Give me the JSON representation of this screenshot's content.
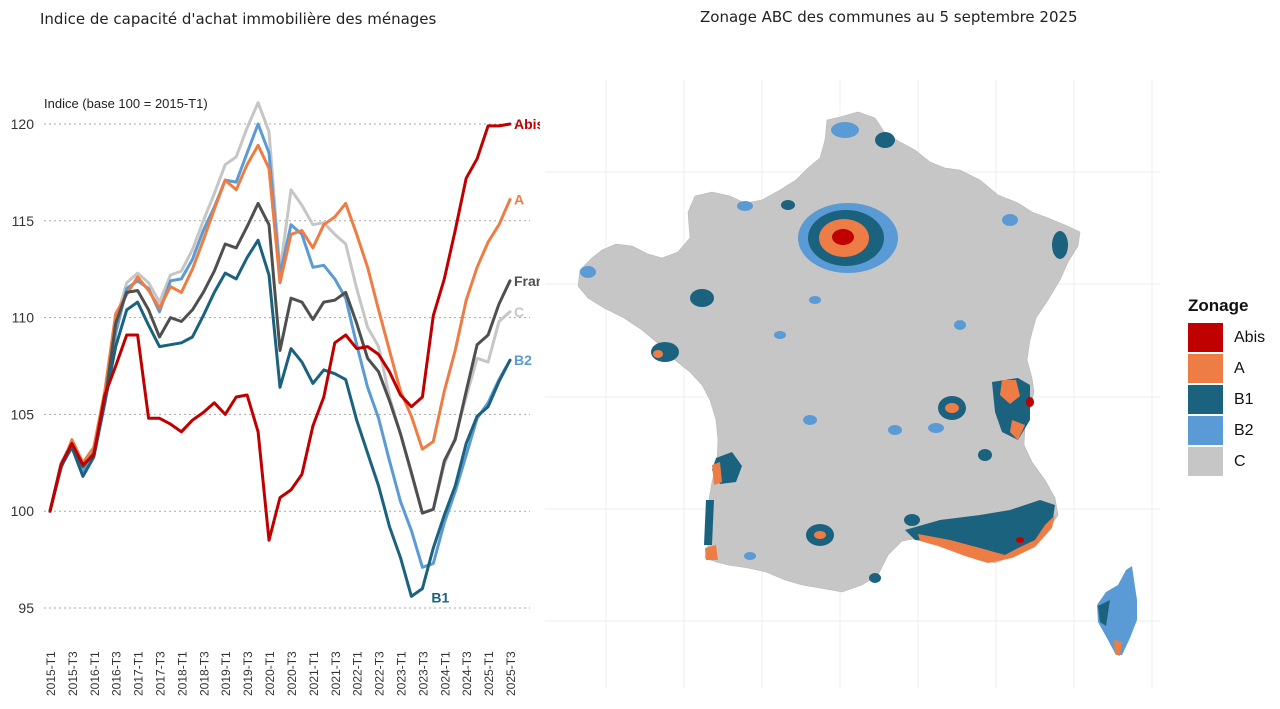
{
  "titles": {
    "left": "Indice de capacité d'achat immobilière des ménages",
    "right": "Zonage ABC des communes au 5 septembre 2025"
  },
  "chart_data": [
    {
      "type": "line",
      "title": "Indice de capacité d'achat immobilière des ménages",
      "ylabel": "Indice (base 100 = 2015-T1)",
      "xlabel": "",
      "ylim": [
        94.5,
        121.5
      ],
      "yticks": [
        95,
        100,
        105,
        110,
        115,
        120
      ],
      "grid": "horizontal-dotted",
      "x": [
        "2015-T1",
        "2015-T2",
        "2015-T3",
        "2015-T4",
        "2016-T1",
        "2016-T2",
        "2016-T3",
        "2016-T4",
        "2017-T1",
        "2017-T2",
        "2017-T3",
        "2017-T4",
        "2018-T1",
        "2018-T2",
        "2018-T3",
        "2018-T4",
        "2019-T1",
        "2019-T2",
        "2019-T3",
        "2019-T4",
        "2020-T1",
        "2020-T2",
        "2020-T3",
        "2020-T4",
        "2021-T1",
        "2021-T2",
        "2021-T3",
        "2021-T4",
        "2022-T1",
        "2022-T2",
        "2022-T3",
        "2022-T4",
        "2023-T1",
        "2023-T2",
        "2023-T3",
        "2023-T4",
        "2024-T1",
        "2024-T2",
        "2024-T3",
        "2024-T4",
        "2025-T1",
        "2025-T2",
        "2025-T3"
      ],
      "xtick_labels": [
        "2015-T1",
        "2015-T3",
        "2016-T1",
        "2016-T3",
        "2017-T1",
        "2017-T3",
        "2018-T1",
        "2018-T3",
        "2019-T1",
        "2019-T3",
        "2020-T1",
        "2020-T3",
        "2021-T1",
        "2021-T3",
        "2022-T1",
        "2022-T3",
        "2023-T1",
        "2023-T3",
        "2024-T1",
        "2024-T3",
        "2025-T1",
        "2025-T3"
      ],
      "series": [
        {
          "name": "C",
          "label": "C",
          "color": "#c6c6c6",
          "values": [
            100,
            102.5,
            103.5,
            102.2,
            103.1,
            106,
            109.8,
            111.8,
            112.3,
            111.8,
            110.8,
            112.2,
            112.4,
            113.5,
            115,
            116.4,
            117.9,
            118.3,
            119.8,
            121.1,
            119.6,
            112.4,
            116.6,
            115.8,
            114.8,
            114.9,
            114.3,
            113.8,
            111.5,
            109.5,
            108.5,
            105.9,
            104,
            101.9,
            99.9,
            100.1,
            102.4,
            103.8,
            105.9,
            107.9,
            107.7,
            109.8,
            110.3
          ]
        },
        {
          "name": "B2",
          "label": "B2",
          "color": "#5b9bd5",
          "values": [
            100,
            102.4,
            103.6,
            102,
            103,
            105.8,
            109.2,
            111.5,
            111.9,
            111.5,
            110.3,
            111.9,
            112,
            113,
            114.5,
            115.7,
            117.1,
            117,
            118.5,
            120,
            118.5,
            112.2,
            114.8,
            114.3,
            112.6,
            112.7,
            112,
            111,
            108.6,
            106.4,
            104.8,
            102.6,
            100.5,
            99,
            97.1,
            97.3,
            99.4,
            101,
            102.9,
            104.8,
            105.6,
            106.8,
            107.8
          ]
        },
        {
          "name": "A",
          "label": "A",
          "color": "#ee7d45",
          "values": [
            100,
            102.2,
            103.7,
            102.5,
            103.3,
            106.2,
            110.2,
            111.2,
            112.1,
            111.4,
            110.5,
            111.6,
            111.3,
            112.5,
            114,
            115.6,
            117.1,
            116.6,
            117.9,
            118.9,
            117.7,
            111.8,
            114.3,
            114.5,
            113.6,
            114.8,
            115.2,
            115.9,
            114.3,
            112.6,
            110.4,
            108.3,
            106.2,
            104.9,
            103.2,
            103.6,
            106.2,
            108.3,
            110.9,
            112.6,
            113.9,
            114.8,
            116.1
          ]
        },
        {
          "name": "France",
          "label": "France",
          "color": "#4f4f4f",
          "values": [
            100,
            102.3,
            103.4,
            102.3,
            103,
            105.6,
            109.7,
            111.3,
            111.4,
            110.4,
            109,
            110,
            109.8,
            110.4,
            111.3,
            112.4,
            113.8,
            113.6,
            114.7,
            115.9,
            114.8,
            108.3,
            111,
            110.8,
            109.9,
            110.8,
            110.9,
            111.3,
            109.7,
            107.9,
            107.2,
            105.7,
            104,
            102,
            99.9,
            100.1,
            102.6,
            103.7,
            106.2,
            108.6,
            109.1,
            110.7,
            111.9
          ]
        },
        {
          "name": "B1",
          "label": "B1",
          "color": "#1b627f",
          "values": [
            100,
            102.3,
            103.3,
            101.8,
            102.8,
            105.6,
            108.5,
            110.4,
            110.8,
            109.6,
            108.5,
            108.6,
            108.7,
            109,
            110.1,
            111.3,
            112.3,
            112,
            113.1,
            114,
            112.2,
            106.4,
            108.4,
            107.7,
            106.6,
            107.3,
            107.1,
            106.8,
            104.7,
            103,
            101.3,
            99.2,
            97.6,
            95.6,
            96,
            98.1,
            99.8,
            101.3,
            103.5,
            104.9,
            105.4,
            106.7,
            107.8
          ]
        },
        {
          "name": "Abis",
          "label": "Abis",
          "color": "#c00000",
          "values": [
            100,
            102.4,
            103.5,
            102.4,
            102.9,
            106,
            107.5,
            109.1,
            109.1,
            104.8,
            104.8,
            104.5,
            104.1,
            104.7,
            105.1,
            105.6,
            105,
            105.9,
            106,
            104.1,
            98.5,
            100.7,
            101.1,
            101.9,
            104.4,
            105.9,
            108.7,
            109.1,
            108.4,
            108.5,
            108.1,
            107.2,
            106,
            105.4,
            105.9,
            110.1,
            112,
            114.5,
            117.2,
            118.2,
            119.9,
            119.9,
            120
          ]
        }
      ]
    },
    {
      "type": "choropleth-map",
      "title": "Zonage ABC des communes au 5 septembre 2025",
      "legend_title": "Zonage",
      "legend": [
        {
          "label": "Abis",
          "color": "#c00000"
        },
        {
          "label": "A",
          "color": "#ee7d45"
        },
        {
          "label": "B1",
          "color": "#1b627f"
        },
        {
          "label": "B2",
          "color": "#5b9bd5"
        },
        {
          "label": "C",
          "color": "#c6c6c6"
        }
      ]
    }
  ]
}
